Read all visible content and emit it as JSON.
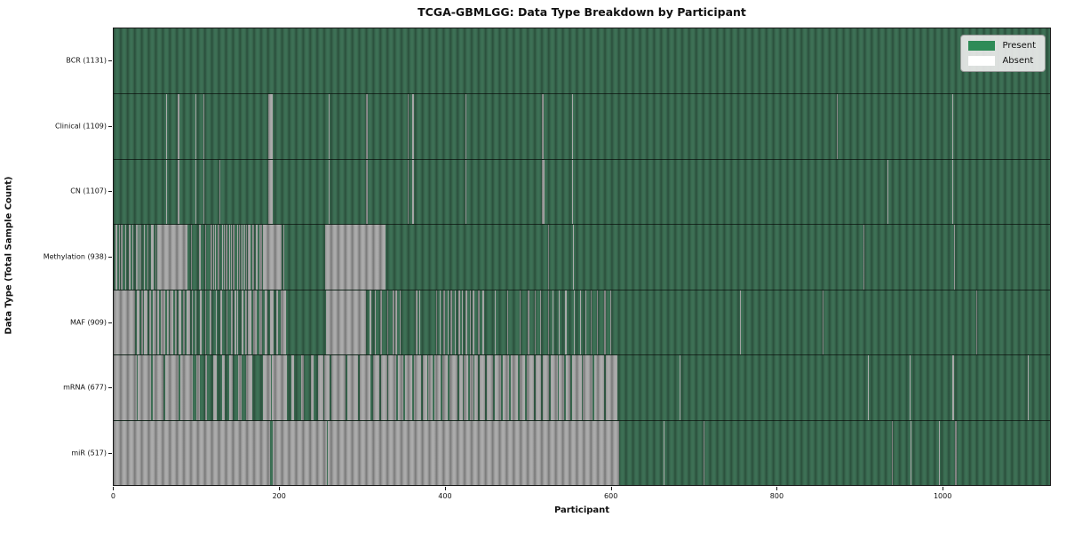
{
  "title": "TCGA-GBMLGG: Data Type Breakdown by Participant",
  "axes": {
    "xlabel": "Participant",
    "ylabel": "Data Type (Total Sample Count)",
    "x_ticks": [
      0,
      200,
      400,
      600,
      800,
      1000
    ]
  },
  "legend": {
    "position": "upper right",
    "entries": [
      {
        "label": "Present",
        "color": "#2e8b57"
      },
      {
        "label": "Absent",
        "color": "#ffffff"
      }
    ]
  },
  "colors": {
    "present_render": "#3d7055",
    "absent_render": "#ababab",
    "spine": "#1a1a1a",
    "legend_bg": "#eaeaea"
  },
  "chart_data": {
    "type": "heatmap",
    "title": "TCGA-GBMLGG: Data Type Breakdown by Participant",
    "xlabel": "Participant",
    "ylabel": "Data Type (Total Sample Count)",
    "x_range": [
      0,
      1131
    ],
    "participant_count": 1131,
    "cell_states": [
      "Present",
      "Absent"
    ],
    "runs_encoding": "absent_runs are [start,end) participant index ranges shown as Absent; all other participants in the row are Present",
    "rows": [
      {
        "name": "BCR",
        "label": "BCR (1131)",
        "present_total": 1131,
        "absent_runs": []
      },
      {
        "name": "Clinical",
        "label": "Clinical (1109)",
        "present_total": 1109,
        "absent_runs": [
          [
            63,
            64
          ],
          [
            77,
            79
          ],
          [
            99,
            100
          ],
          [
            108,
            109
          ],
          [
            187,
            192
          ],
          [
            260,
            261
          ],
          [
            305,
            307
          ],
          [
            355,
            356
          ],
          [
            361,
            363
          ],
          [
            425,
            426
          ],
          [
            517,
            519
          ],
          [
            554,
            555
          ],
          [
            874,
            875
          ],
          [
            1013,
            1014
          ]
        ]
      },
      {
        "name": "CN",
        "label": "CN (1107)",
        "present_total": 1107,
        "absent_runs": [
          [
            63,
            64
          ],
          [
            77,
            79
          ],
          [
            99,
            100
          ],
          [
            108,
            109
          ],
          [
            128,
            129
          ],
          [
            187,
            192
          ],
          [
            260,
            261
          ],
          [
            305,
            307
          ],
          [
            355,
            356
          ],
          [
            361,
            363
          ],
          [
            425,
            426
          ],
          [
            517,
            520
          ],
          [
            554,
            555
          ],
          [
            935,
            936
          ],
          [
            1013,
            1014
          ]
        ]
      },
      {
        "name": "Methylation",
        "label": "Methylation (938)",
        "present_total": 938,
        "absent_runs": [
          [
            2,
            4
          ],
          [
            6,
            7
          ],
          [
            9,
            11
          ],
          [
            14,
            15
          ],
          [
            18,
            20
          ],
          [
            23,
            24
          ],
          [
            27,
            29
          ],
          [
            30,
            31
          ],
          [
            32,
            33
          ],
          [
            36,
            38
          ],
          [
            41,
            42
          ],
          [
            45,
            48
          ],
          [
            50,
            51
          ],
          [
            53,
            89
          ],
          [
            93,
            94
          ],
          [
            103,
            105
          ],
          [
            111,
            112
          ],
          [
            117,
            119
          ],
          [
            120,
            121
          ],
          [
            122,
            123
          ],
          [
            126,
            128
          ],
          [
            131,
            132
          ],
          [
            133,
            134
          ],
          [
            135,
            137
          ],
          [
            140,
            141
          ],
          [
            142,
            143
          ],
          [
            144,
            146
          ],
          [
            149,
            150
          ],
          [
            151,
            152
          ],
          [
            153,
            155
          ],
          [
            156,
            157
          ],
          [
            158,
            159
          ],
          [
            160,
            161
          ],
          [
            162,
            165
          ],
          [
            167,
            170
          ],
          [
            172,
            174
          ],
          [
            176,
            179
          ],
          [
            180,
            203
          ],
          [
            205,
            206
          ],
          [
            255,
            328
          ],
          [
            525,
            526
          ],
          [
            555,
            556
          ],
          [
            906,
            907
          ],
          [
            1015,
            1016
          ]
        ]
      },
      {
        "name": "MAF",
        "label": "MAF (909)",
        "present_total": 909,
        "absent_runs": [
          [
            0,
            22
          ],
          [
            23,
            26
          ],
          [
            28,
            31
          ],
          [
            33,
            35
          ],
          [
            37,
            41
          ],
          [
            43,
            45
          ],
          [
            47,
            51
          ],
          [
            53,
            55
          ],
          [
            57,
            62
          ],
          [
            64,
            66
          ],
          [
            68,
            72
          ],
          [
            74,
            76
          ],
          [
            78,
            82
          ],
          [
            84,
            86
          ],
          [
            88,
            92
          ],
          [
            94,
            96
          ],
          [
            99,
            100
          ],
          [
            104,
            106
          ],
          [
            110,
            111
          ],
          [
            116,
            118
          ],
          [
            123,
            124
          ],
          [
            129,
            131
          ],
          [
            136,
            137
          ],
          [
            142,
            144
          ],
          [
            146,
            148
          ],
          [
            149,
            150
          ],
          [
            155,
            157
          ],
          [
            159,
            161
          ],
          [
            162,
            166
          ],
          [
            169,
            173
          ],
          [
            176,
            179
          ],
          [
            182,
            186
          ],
          [
            189,
            193
          ],
          [
            196,
            199
          ],
          [
            202,
            208
          ],
          [
            256,
            305
          ],
          [
            309,
            311
          ],
          [
            316,
            317
          ],
          [
            322,
            324
          ],
          [
            330,
            331
          ],
          [
            337,
            339
          ],
          [
            340,
            342
          ],
          [
            345,
            346
          ],
          [
            365,
            367
          ],
          [
            369,
            370
          ],
          [
            389,
            391
          ],
          [
            394,
            395
          ],
          [
            398,
            400
          ],
          [
            403,
            404
          ],
          [
            407,
            409
          ],
          [
            412,
            413
          ],
          [
            416,
            418
          ],
          [
            421,
            422
          ],
          [
            425,
            427
          ],
          [
            430,
            431
          ],
          [
            434,
            436
          ],
          [
            440,
            442
          ],
          [
            445,
            448
          ],
          [
            460,
            461
          ],
          [
            475,
            476
          ],
          [
            490,
            491
          ],
          [
            500,
            502
          ],
          [
            509,
            510
          ],
          [
            515,
            516
          ],
          [
            525,
            526
          ],
          [
            530,
            531
          ],
          [
            538,
            539
          ],
          [
            545,
            547
          ],
          [
            556,
            557
          ],
          [
            563,
            564
          ],
          [
            570,
            571
          ],
          [
            576,
            577
          ],
          [
            584,
            585
          ],
          [
            592,
            594
          ],
          [
            600,
            601
          ],
          [
            756,
            757
          ],
          [
            856,
            857
          ],
          [
            1042,
            1043
          ]
        ]
      },
      {
        "name": "mRNA",
        "label": "mRNA (677)",
        "present_total": 677,
        "absent_runs": [
          [
            0,
            28
          ],
          [
            29,
            45
          ],
          [
            47,
            60
          ],
          [
            62,
            78
          ],
          [
            80,
            95
          ],
          [
            100,
            104
          ],
          [
            110,
            113
          ],
          [
            120,
            124
          ],
          [
            131,
            134
          ],
          [
            140,
            144
          ],
          [
            150,
            154
          ],
          [
            160,
            167
          ],
          [
            180,
            190
          ],
          [
            191,
            209
          ],
          [
            215,
            218
          ],
          [
            226,
            230
          ],
          [
            238,
            241
          ],
          [
            247,
            253
          ],
          [
            254,
            261
          ],
          [
            263,
            271
          ],
          [
            272,
            280
          ],
          [
            282,
            295
          ],
          [
            297,
            310
          ],
          [
            313,
            321
          ],
          [
            323,
            330
          ],
          [
            332,
            341
          ],
          [
            343,
            350
          ],
          [
            352,
            361
          ],
          [
            363,
            371
          ],
          [
            373,
            379
          ],
          [
            380,
            385
          ],
          [
            387,
            395
          ],
          [
            397,
            404
          ],
          [
            406,
            415
          ],
          [
            417,
            422
          ],
          [
            423,
            428
          ],
          [
            430,
            435
          ],
          [
            436,
            440
          ],
          [
            442,
            449
          ],
          [
            451,
            458
          ],
          [
            460,
            468
          ],
          [
            470,
            478
          ],
          [
            480,
            488
          ],
          [
            490,
            497
          ],
          [
            499,
            508
          ],
          [
            510,
            516
          ],
          [
            518,
            526
          ],
          [
            528,
            536
          ],
          [
            538,
            544
          ],
          [
            546,
            552
          ],
          [
            554,
            565
          ],
          [
            567,
            578
          ],
          [
            580,
            592
          ],
          [
            594,
            608
          ],
          [
            683,
            684
          ],
          [
            911,
            912
          ],
          [
            961,
            962
          ],
          [
            1013,
            1015
          ],
          [
            1104,
            1105
          ]
        ]
      },
      {
        "name": "miR",
        "label": "miR (517)",
        "present_total": 517,
        "absent_runs": [
          [
            0,
            189
          ],
          [
            192,
            258
          ],
          [
            259,
            611
          ],
          [
            664,
            665
          ],
          [
            713,
            714
          ],
          [
            940,
            941
          ],
          [
            963,
            964
          ],
          [
            997,
            998
          ],
          [
            1016,
            1018
          ]
        ]
      }
    ]
  }
}
